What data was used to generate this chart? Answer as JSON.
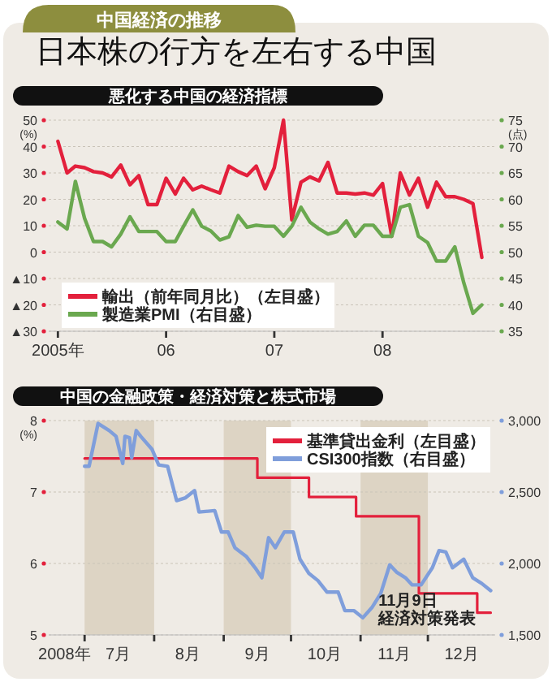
{
  "chart_data": [
    {
      "type": "other",
      "title": "日本株の行方を左右する中国",
      "subtitle": "中国経済の推移"
    },
    {
      "type": "line",
      "title": "悪化する中国の経済指標",
      "ylabel": "(%)",
      "y2label": "(点)",
      "x": [
        "2005-01",
        "2005-02",
        "2005-03",
        "2005-04",
        "2005-05",
        "2005-06",
        "2005-07",
        "2005-08",
        "2005-09",
        "2005-10",
        "2005-11",
        "2005-12",
        "2006-01",
        "2006-02",
        "2006-03",
        "2006-04",
        "2006-05",
        "2006-06",
        "2006-07",
        "2006-08",
        "2006-09",
        "2006-10",
        "2006-11",
        "2006-12",
        "2007-01",
        "2007-02",
        "2007-03",
        "2007-04",
        "2007-05",
        "2007-06",
        "2007-07",
        "2007-08",
        "2007-09",
        "2007-10",
        "2007-11",
        "2007-12",
        "2008-01",
        "2008-02",
        "2008-03",
        "2008-04",
        "2008-05",
        "2008-06",
        "2008-07",
        "2008-08",
        "2008-09",
        "2008-10",
        "2008-11",
        "2008-12"
      ],
      "xlim": [
        "2004-12-01",
        "2009-01-15"
      ],
      "xticks": [
        {
          "value": "2005-01",
          "label": "2005年"
        },
        {
          "value": "2006-01",
          "label": "06"
        },
        {
          "value": "2007-01",
          "label": "07"
        },
        {
          "value": "2008-01",
          "label": "08"
        }
      ],
      "ylim": [
        -30,
        50
      ],
      "yticks": [
        50,
        40,
        30,
        20,
        10,
        0,
        {
          "value": -10,
          "label": "▲10"
        },
        {
          "value": -20,
          "label": "▲20"
        },
        {
          "value": -30,
          "label": "▲30"
        }
      ],
      "y2lim": [
        35,
        75
      ],
      "y2ticks": [
        75,
        70,
        65,
        60,
        55,
        50,
        45,
        40,
        35
      ],
      "grid": "y",
      "legend": "bottom left",
      "series": [
        {
          "name": "輸出（前年同月比）（左目盛）",
          "color": "#e3203c",
          "values": [
            42,
            30,
            32.6,
            32,
            30.5,
            30,
            28.5,
            33,
            25.5,
            29,
            18,
            18,
            28,
            22,
            28,
            23.6,
            25,
            23.6,
            22.4,
            32.6,
            30.5,
            29,
            32.6,
            24,
            32,
            50,
            12.2,
            26.5,
            28.5,
            27,
            34,
            22.4,
            22.4,
            22,
            22.4,
            21.6,
            26,
            6,
            30,
            21.6,
            28,
            17,
            26.5,
            21,
            21,
            20,
            18.4,
            -2
          ]
        },
        {
          "name": "製造業PMI（右目盛）",
          "color": "#6aa84f",
          "axis": "y2",
          "values": [
            55.7,
            54.4,
            63.4,
            56.4,
            52,
            52,
            51,
            53.4,
            56.7,
            53.9,
            53.9,
            53.9,
            52,
            52,
            54.9,
            58,
            54.9,
            54,
            52.3,
            52.9,
            56.9,
            54.7,
            55.1,
            54.9,
            54.9,
            53,
            54.9,
            58.5,
            55.7,
            54.4,
            53.4,
            53.9,
            55.9,
            53,
            55.1,
            55.1,
            53,
            53,
            58.5,
            59,
            53,
            51.8,
            48.3,
            48.3,
            51,
            44.2,
            38.4,
            40
          ]
        }
      ]
    },
    {
      "type": "line",
      "title": "中国の金融政策・経済対策と株式市場",
      "ylabel": "(%)",
      "xlim": [
        "2008-06-15",
        "2008-12-31"
      ],
      "xticks": [
        {
          "value": "2008-06-22",
          "label": "2008年"
        },
        {
          "value": "2008-07-01",
          "label": null
        },
        {
          "value": "2008-07-16",
          "label": "7月"
        },
        {
          "value": "2008-08-01",
          "label": null
        },
        {
          "value": "2008-08-16",
          "label": "8月"
        },
        {
          "value": "2008-09-01",
          "label": null
        },
        {
          "value": "2008-09-16",
          "label": "9月"
        },
        {
          "value": "2008-10-01",
          "label": null
        },
        {
          "value": "2008-10-16",
          "label": "10月"
        },
        {
          "value": "2008-11-01",
          "label": null
        },
        {
          "value": "2008-11-16",
          "label": "11月"
        },
        {
          "value": "2008-12-01",
          "label": null
        },
        {
          "value": "2008-12-16",
          "label": "12月"
        }
      ],
      "ylim": [
        5,
        8
      ],
      "yticks": [
        8,
        7,
        6,
        5
      ],
      "y2lim": [
        1500,
        3000
      ],
      "y2ticks": [
        {
          "value": 3000,
          "label": "3,000"
        },
        {
          "value": 2500,
          "label": "2,500"
        },
        {
          "value": 2000,
          "label": "2,000"
        },
        {
          "value": 1500,
          "label": "1,500"
        }
      ],
      "grid": "y",
      "legend": "top right",
      "bands": [
        {
          "axis": "x",
          "from": "2008-07-01",
          "to": "2008-08-01",
          "color": "#ddd4c4"
        },
        {
          "axis": "x",
          "from": "2008-09-01",
          "to": "2008-10-01",
          "color": "#ddd4c4"
        },
        {
          "axis": "x",
          "from": "2008-11-01",
          "to": "2008-12-01",
          "color": "#ddd4c4"
        }
      ],
      "annotations": [
        {
          "text": "11月9日",
          "x": "2008-11-09",
          "y": 5.5
        },
        "経済対策発表"
      ],
      "series": [
        {
          "name": "基準貸出金利（左目盛）",
          "type": "step",
          "color": "#e3203c",
          "x": [
            "2008-07-01",
            "2008-09-16",
            "2008-10-09",
            "2008-10-30",
            "2008-11-27",
            "2008-12-23",
            "2008-12-29"
          ],
          "values": [
            7.47,
            7.2,
            6.93,
            6.66,
            5.58,
            5.31,
            5.31
          ]
        },
        {
          "name": "CSI300指数（右目盛）",
          "color": "#7f9edb",
          "axis": "y2",
          "x": [
            "2008-07-01",
            "2008-07-03",
            "2008-07-07",
            "2008-07-12",
            "2008-07-15",
            "2008-07-18",
            "2008-07-19",
            "2008-07-21",
            "2008-07-22",
            "2008-07-24",
            "2008-07-26",
            "2008-07-31",
            "2008-08-03",
            "2008-08-07",
            "2008-08-11",
            "2008-08-15",
            "2008-08-19",
            "2008-08-21",
            "2008-08-28",
            "2008-08-31",
            "2008-09-03",
            "2008-09-06",
            "2008-09-11",
            "2008-09-15",
            "2008-09-18",
            "2008-09-21",
            "2008-09-24",
            "2008-09-28",
            "2008-10-02",
            "2008-10-05",
            "2008-10-09",
            "2008-10-13",
            "2008-10-17",
            "2008-10-22",
            "2008-10-25",
            "2008-10-29",
            "2008-11-02",
            "2008-11-06",
            "2008-11-10",
            "2008-11-14",
            "2008-11-17",
            "2008-11-21",
            "2008-11-24",
            "2008-11-28",
            "2008-12-03",
            "2008-12-06",
            "2008-12-09",
            "2008-12-12",
            "2008-12-17",
            "2008-12-21",
            "2008-12-25",
            "2008-12-29"
          ],
          "values": [
            2680,
            2680,
            2980,
            2930,
            2890,
            2700,
            2890,
            2880,
            2740,
            2930,
            2890,
            2800,
            2690,
            2680,
            2440,
            2460,
            2510,
            2360,
            2370,
            2220,
            2220,
            2110,
            2050,
            1970,
            1900,
            2180,
            2110,
            2220,
            2220,
            2030,
            1930,
            1880,
            1800,
            1800,
            1670,
            1670,
            1620,
            1690,
            1790,
            1990,
            1940,
            1900,
            1850,
            1850,
            1970,
            2090,
            2080,
            1970,
            2030,
            1900,
            1860,
            1810
          ]
        }
      ]
    }
  ]
}
